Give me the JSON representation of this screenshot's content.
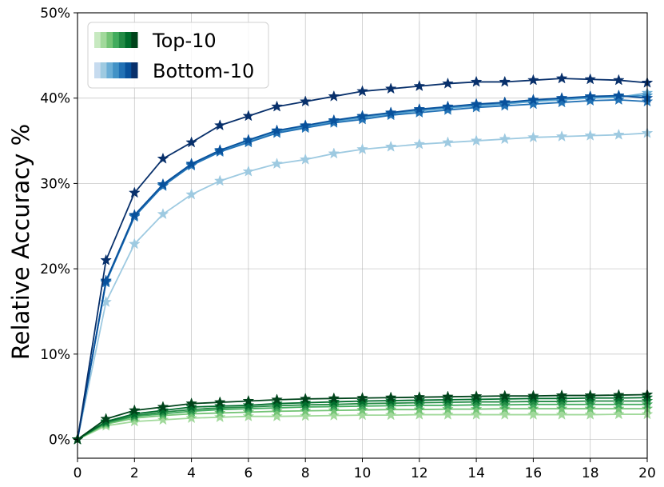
{
  "chart_data": {
    "type": "line",
    "ylabel": "Relative Accuracy %",
    "xlabel": "",
    "xlim": [
      0,
      20
    ],
    "ylim": [
      -2.2,
      50
    ],
    "xticks": [
      "0",
      "2",
      "4",
      "6",
      "8",
      "10",
      "12",
      "14",
      "16",
      "18",
      "20"
    ],
    "yticks": [
      "0%",
      "10%",
      "20%",
      "30%",
      "40%",
      "50%"
    ],
    "grid": true,
    "legend_position": "top-left",
    "legend": [
      {
        "label": "Top-10",
        "colors": [
          "#c7e9c0",
          "#a1d99b",
          "#74c476",
          "#41ab5d",
          "#238b45",
          "#006d2c",
          "#00441b"
        ]
      },
      {
        "label": "Bottom-10",
        "colors": [
          "#c6dbef",
          "#9ecae1",
          "#6baed6",
          "#4292c6",
          "#2171b5",
          "#08519c",
          "#08306b"
        ]
      }
    ],
    "x": [
      0,
      1,
      2,
      3,
      4,
      5,
      6,
      7,
      8,
      9,
      10,
      11,
      12,
      13,
      14,
      15,
      16,
      17,
      18,
      19,
      20
    ],
    "series": [
      {
        "group": "Bottom-10",
        "color": "#9ecae1",
        "values": [
          0,
          16.1,
          22.9,
          26.4,
          28.7,
          30.3,
          31.4,
          32.3,
          32.8,
          33.5,
          34.0,
          34.3,
          34.6,
          34.8,
          35.0,
          35.2,
          35.4,
          35.5,
          35.6,
          35.7,
          35.9
        ]
      },
      {
        "group": "Bottom-10",
        "color": "#6baed6",
        "values": [
          0,
          18.4,
          26.1,
          29.7,
          32.1,
          33.8,
          34.9,
          36.0,
          36.6,
          37.2,
          37.7,
          38.1,
          38.5,
          38.8,
          39.1,
          39.3,
          39.6,
          39.8,
          40.0,
          40.1,
          40.6
        ]
      },
      {
        "group": "Bottom-10",
        "color": "#4292c6",
        "values": [
          0,
          18.5,
          26.2,
          29.8,
          32.2,
          33.8,
          35.0,
          36.1,
          36.7,
          37.3,
          37.8,
          38.2,
          38.6,
          38.9,
          39.2,
          39.4,
          39.7,
          39.9,
          40.1,
          40.2,
          40.3
        ]
      },
      {
        "group": "Bottom-10",
        "color": "#2171b5",
        "values": [
          0,
          18.4,
          26.1,
          29.7,
          32.1,
          33.7,
          34.8,
          35.9,
          36.5,
          37.1,
          37.5,
          38.0,
          38.3,
          38.6,
          38.9,
          39.1,
          39.3,
          39.5,
          39.7,
          39.8,
          39.6
        ]
      },
      {
        "group": "Bottom-10",
        "color": "#08519c",
        "values": [
          0,
          18.6,
          26.3,
          29.9,
          32.3,
          33.9,
          35.1,
          36.2,
          36.8,
          37.4,
          37.9,
          38.3,
          38.7,
          39.0,
          39.3,
          39.5,
          39.8,
          40.0,
          40.2,
          40.3,
          40.0
        ]
      },
      {
        "group": "Bottom-10",
        "color": "#08306b",
        "values": [
          0,
          21.0,
          28.9,
          32.9,
          34.8,
          36.8,
          37.9,
          39.0,
          39.6,
          40.2,
          40.8,
          41.1,
          41.4,
          41.7,
          41.9,
          41.9,
          42.1,
          42.3,
          42.2,
          42.1,
          41.8
        ]
      },
      {
        "group": "Top-10",
        "color": "#a1d99b",
        "values": [
          0,
          1.6,
          2.1,
          2.3,
          2.5,
          2.6,
          2.7,
          2.7,
          2.75,
          2.8,
          2.85,
          2.85,
          2.9,
          2.9,
          2.9,
          2.9,
          2.9,
          2.9,
          2.9,
          2.95,
          2.95
        ]
      },
      {
        "group": "Top-10",
        "color": "#74c476",
        "values": [
          0,
          1.8,
          2.5,
          2.8,
          3.0,
          3.1,
          3.2,
          3.3,
          3.35,
          3.4,
          3.45,
          3.5,
          3.5,
          3.55,
          3.55,
          3.6,
          3.6,
          3.6,
          3.6,
          3.6,
          3.6
        ]
      },
      {
        "group": "Top-10",
        "color": "#41ab5d",
        "values": [
          0,
          1.9,
          2.7,
          3.0,
          3.3,
          3.5,
          3.6,
          3.7,
          3.8,
          3.85,
          3.9,
          3.95,
          4.0,
          4.0,
          4.05,
          4.05,
          4.1,
          4.1,
          4.1,
          4.1,
          4.1
        ]
      },
      {
        "group": "Top-10",
        "color": "#238b45",
        "values": [
          0,
          2.0,
          2.8,
          3.2,
          3.5,
          3.7,
          3.8,
          3.95,
          4.05,
          4.1,
          4.2,
          4.25,
          4.3,
          4.35,
          4.4,
          4.4,
          4.45,
          4.45,
          4.5,
          4.5,
          4.5
        ]
      },
      {
        "group": "Top-10",
        "color": "#006d2c",
        "values": [
          0,
          2.1,
          3.0,
          3.4,
          3.8,
          3.9,
          4.0,
          4.2,
          4.3,
          4.4,
          4.5,
          4.55,
          4.6,
          4.65,
          4.7,
          4.75,
          4.8,
          4.8,
          4.85,
          4.85,
          4.9
        ]
      },
      {
        "group": "Top-10",
        "color": "#00441b",
        "values": [
          0,
          2.4,
          3.4,
          3.8,
          4.2,
          4.35,
          4.5,
          4.65,
          4.75,
          4.8,
          4.85,
          4.9,
          4.95,
          5.0,
          5.05,
          5.1,
          5.1,
          5.15,
          5.15,
          5.2,
          5.25
        ]
      }
    ]
  }
}
